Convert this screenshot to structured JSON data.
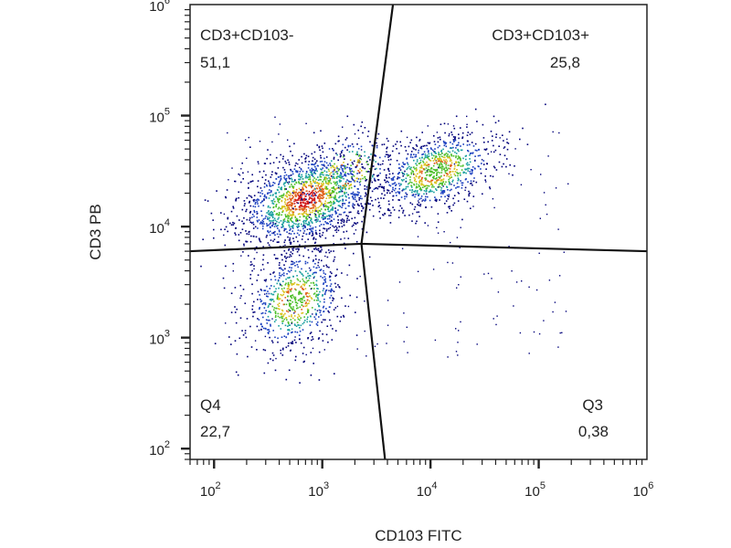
{
  "chart_data": {
    "type": "scatter",
    "title": "",
    "xlabel": "CD103 FITC",
    "ylabel": "CD3 PB",
    "xscale": "log",
    "yscale": "log",
    "xlim": [
      60,
      1000000
    ],
    "ylim": [
      80,
      1000000
    ],
    "grid": false,
    "x_ticks": [
      {
        "base": "10",
        "exp": "2",
        "value": 100
      },
      {
        "base": "10",
        "exp": "3",
        "value": 1000
      },
      {
        "base": "10",
        "exp": "4",
        "value": 10000
      },
      {
        "base": "10",
        "exp": "5",
        "value": 100000
      },
      {
        "base": "10",
        "exp": "6",
        "value": 1000000
      }
    ],
    "y_ticks": [
      {
        "base": "10",
        "exp": "2",
        "value": 100
      },
      {
        "base": "10",
        "exp": "3",
        "value": 1000
      },
      {
        "base": "10",
        "exp": "4",
        "value": 10000
      },
      {
        "base": "10",
        "exp": "5",
        "value": 100000
      },
      {
        "base": "10",
        "exp": "6",
        "value": 1000000
      }
    ],
    "quadrants": [
      {
        "name": "CD3+CD103-",
        "value": "51,1",
        "position": "top-left"
      },
      {
        "name": "CD3+CD103+",
        "value": "25,8",
        "position": "top-right"
      },
      {
        "name": "Q4",
        "value": "22,7",
        "position": "bottom-left"
      },
      {
        "name": "Q3",
        "value": "0,38",
        "position": "bottom-right"
      }
    ],
    "gate_center": [
      2300,
      7000
    ],
    "gate_lines": {
      "top": [
        [
          2300,
          7000
        ],
        [
          4500,
          1000000
        ]
      ],
      "bottom": [
        [
          2300,
          7000
        ],
        [
          3800,
          80
        ]
      ],
      "left": [
        [
          2300,
          7000
        ],
        [
          60,
          6000
        ]
      ],
      "right": [
        [
          2300,
          7000
        ],
        [
          1000000,
          6000
        ]
      ]
    },
    "populations": [
      {
        "name": "CD3+CD103-",
        "center": [
          700,
          18000
        ],
        "spread": [
          0.32,
          0.2
        ],
        "count": 1600
      },
      {
        "name": "CD3+CD103-",
        "center": [
          1600,
          30000
        ],
        "spread": [
          0.25,
          0.18
        ],
        "count": 250
      },
      {
        "name": "CD3+CD103+",
        "center": [
          11000,
          32000
        ],
        "spread": [
          0.28,
          0.16
        ],
        "count": 900
      },
      {
        "name": "Q4",
        "center": [
          550,
          2200
        ],
        "spread": [
          0.22,
          0.22
        ],
        "count": 750
      }
    ],
    "density_colors": [
      "#00007a",
      "#1a3fbf",
      "#1aa0a0",
      "#4dbf2a",
      "#d9c11a",
      "#e0601a",
      "#d01a1a"
    ]
  }
}
